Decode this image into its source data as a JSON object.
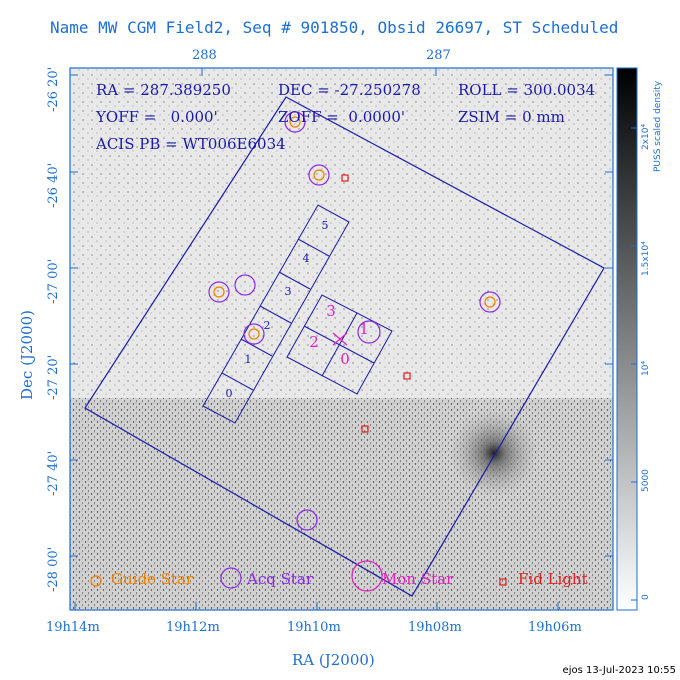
{
  "title": "Name MW CGM Field2, Seq # 901850, Obsid 26697, ST Scheduled",
  "top_axis_ticks": [
    "288",
    "287"
  ],
  "left_axis_ticks": [
    "-26 20'",
    "-26 40'",
    "-27 00'",
    "-27 20'",
    "-27 40'",
    "-28 00'"
  ],
  "bottom_axis_ticks": [
    "19h14m",
    "19h12m",
    "19h10m",
    "19h08m",
    "19h06m"
  ],
  "xlabel": "RA (J2000)",
  "ylabel": "Dec (J2000)",
  "header": {
    "ra": "RA = 287.389250",
    "dec": "DEC = -27.250278",
    "roll": "ROLL = 300.0034",
    "yoff": "YOFF =   0.000'",
    "zoff": "ZOFF =  0.0000'",
    "zsim": "ZSIM = 0 mm",
    "acis": "ACIS PB = WT006E6034"
  },
  "colorbar": {
    "label": "PUSS scaled density",
    "ticks": [
      "2x10⁴",
      "1.5x10⁴",
      "10⁴",
      "5000",
      "0"
    ]
  },
  "chips_s": [
    "0",
    "1",
    "2",
    "3",
    "4",
    "5"
  ],
  "chips_i": [
    "0",
    "1",
    "2",
    "3"
  ],
  "legend": {
    "guide": "Guide Star",
    "acq": "Acq Star",
    "mon": "Mon Star",
    "fid": "Fid Light"
  },
  "colors": {
    "axis": "#1e6fd0",
    "field": "#1a1aa8",
    "guide": "#f08000",
    "acq": "#8a2be2",
    "mon": "#e020c0",
    "fid": "#e02020"
  },
  "footer": "ejos 13-Jul-2023 10:55"
}
